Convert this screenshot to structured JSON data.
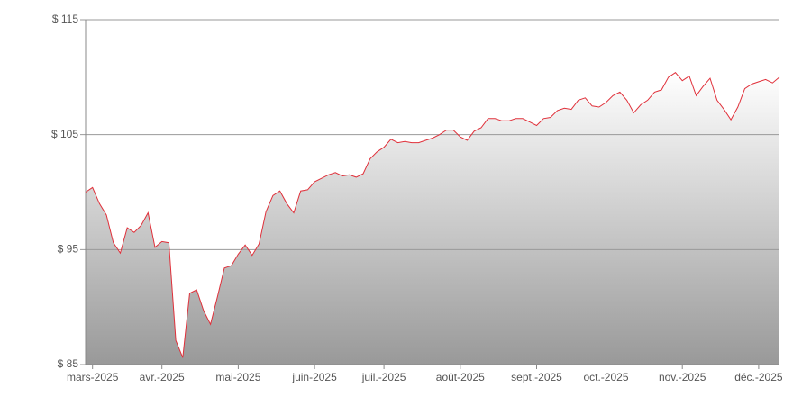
{
  "chart_data": {
    "type": "area",
    "categories": [
      null,
      "mars-2025",
      null,
      null,
      null,
      null,
      null,
      null,
      null,
      null,
      null,
      "avr.-2025",
      null,
      null,
      null,
      null,
      null,
      null,
      null,
      null,
      null,
      null,
      "mai-2025",
      null,
      null,
      null,
      null,
      null,
      null,
      null,
      null,
      null,
      null,
      "juin-2025",
      null,
      null,
      null,
      null,
      null,
      null,
      null,
      null,
      null,
      "juil.-2025",
      null,
      null,
      null,
      null,
      null,
      null,
      null,
      null,
      null,
      null,
      "août-2025",
      null,
      null,
      null,
      null,
      null,
      null,
      null,
      null,
      null,
      null,
      "sept.-2025",
      null,
      null,
      null,
      null,
      null,
      null,
      null,
      null,
      null,
      "oct.-2025",
      null,
      null,
      null,
      null,
      null,
      null,
      null,
      null,
      null,
      null,
      "nov.-2025",
      null,
      null,
      null,
      null,
      null,
      null,
      null,
      null,
      null,
      null,
      "déc.-2025",
      null,
      null,
      null
    ],
    "values": [
      100.0,
      100.4,
      99.0,
      98.0,
      95.6,
      94.7,
      96.9,
      96.5,
      97.1,
      98.2,
      95.2,
      95.7,
      95.6,
      87.1,
      85.6,
      91.2,
      91.5,
      89.7,
      88.5,
      90.9,
      93.4,
      93.6,
      94.6,
      95.4,
      94.5,
      95.5,
      98.3,
      99.7,
      100.1,
      99.0,
      98.2,
      100.1,
      100.2,
      100.9,
      101.2,
      101.5,
      101.7,
      101.4,
      101.5,
      101.3,
      101.6,
      102.9,
      103.5,
      103.9,
      104.6,
      104.3,
      104.4,
      104.3,
      104.3,
      104.5,
      104.7,
      105.0,
      105.4,
      105.4,
      104.8,
      104.5,
      105.3,
      105.6,
      106.4,
      106.4,
      106.2,
      106.2,
      106.4,
      106.4,
      106.1,
      105.8,
      106.4,
      106.5,
      107.1,
      107.3,
      107.2,
      108.0,
      108.2,
      107.5,
      107.4,
      107.8,
      108.4,
      108.7,
      108.0,
      106.9,
      107.6,
      108.0,
      108.7,
      108.9,
      110.0,
      110.4,
      109.7,
      110.1,
      108.4,
      109.2,
      109.9,
      108.0,
      107.2,
      106.3,
      107.4,
      109.0,
      109.4,
      109.6,
      109.8,
      109.5,
      110.0
    ],
    "color": "#e0303a",
    "ylim": [
      85,
      115
    ],
    "yticks": [
      {
        "value": 85,
        "label": "$ 85"
      },
      {
        "value": 95,
        "label": "$ 95"
      },
      {
        "value": 105,
        "label": "$ 105"
      },
      {
        "value": 115,
        "label": "$ 115"
      }
    ],
    "grid": true
  }
}
